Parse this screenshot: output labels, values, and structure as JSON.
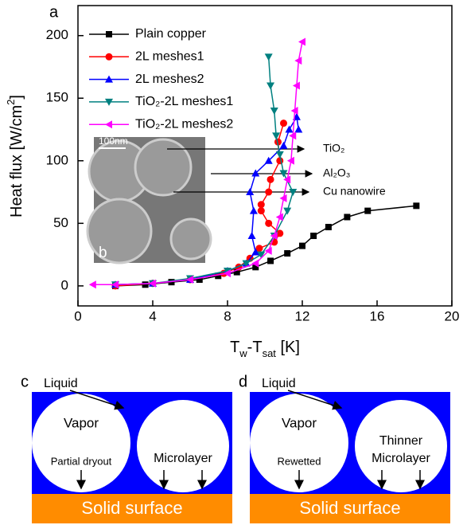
{
  "chart_data": {
    "type": "line",
    "panel_label": "a",
    "x_label": [
      "T",
      "w",
      "-T",
      "sat",
      " [K]"
    ],
    "y_label": [
      "Heat flux [W/cm",
      "2",
      "]"
    ],
    "xlim": [
      0,
      20
    ],
    "xticks": [
      0,
      4,
      8,
      12,
      16,
      20
    ],
    "ylim": [
      -16,
      224
    ],
    "yticks": [
      0,
      50,
      100,
      150,
      200
    ],
    "legend": "upper left",
    "series": [
      {
        "name": "Plain copper",
        "color": "#000000",
        "marker": "square",
        "x": [
          2,
          3.6,
          5,
          6.5,
          7.5,
          8.5,
          9.5,
          10.3,
          11.2,
          12,
          12.6,
          13.4,
          14.4,
          15.5,
          18.1
        ],
        "values": [
          0,
          1,
          3,
          5,
          8,
          11,
          15,
          20,
          26,
          32,
          40,
          47,
          55,
          60,
          64
        ]
      },
      {
        "name": "2L meshes1",
        "color": "#ff0000",
        "marker": "circle",
        "x": [
          2,
          4,
          6,
          7.8,
          8.6,
          9.2,
          9.7,
          10.5,
          10.8,
          10.2,
          9.8,
          9.8,
          10.2,
          10.3,
          10.8,
          10.7,
          11
        ],
        "values": [
          0,
          2,
          5,
          10,
          15,
          22,
          30,
          35,
          42,
          50,
          60,
          65,
          75,
          85,
          100,
          115,
          130
        ]
      },
      {
        "name": "2L meshes2",
        "color": "#0000ff",
        "marker": "up",
        "x": [
          2,
          4,
          6,
          8,
          9,
          9.5,
          9.3,
          9.4,
          9.2,
          9.5,
          10.2,
          11,
          11.3,
          11.7,
          11.8
        ],
        "values": [
          1,
          2,
          5,
          12,
          18,
          27,
          40,
          60,
          75,
          90,
          100,
          112,
          125,
          135,
          125
        ]
      },
      {
        "name": "TiO₂-2L meshes1",
        "color": "#008080",
        "marker": "down",
        "x": [
          2,
          4,
          6,
          8,
          9,
          9.8,
          10.5,
          11.2,
          11.5,
          11,
          10.8,
          10.6,
          10.5,
          10.3,
          10.2
        ],
        "values": [
          1,
          2,
          6,
          12,
          18,
          25,
          40,
          60,
          75,
          90,
          105,
          120,
          140,
          160,
          183
        ]
      },
      {
        "name": "TiO₂-2L meshes2",
        "color": "#ff00ff",
        "marker": "left",
        "x": [
          0.8,
          2,
          4,
          6,
          8,
          9.5,
          10.2,
          10.5,
          10.8,
          11,
          11.2,
          11.4,
          11.5,
          11.6,
          11.7,
          11.8,
          12
        ],
        "values": [
          1,
          1,
          2,
          5,
          10,
          18,
          28,
          40,
          55,
          70,
          85,
          100,
          120,
          140,
          160,
          180,
          195
        ]
      }
    ],
    "inset": {
      "scale_bar": "100nm",
      "label": "b",
      "annotations": [
        "TiO₂",
        "Al₂O₃",
        "Cu nanowire"
      ]
    }
  },
  "diagrams": [
    {
      "label": "c",
      "liquid": "Liquid",
      "vapor": "Vapor",
      "left_note": "Partial dryout",
      "right_note": [
        "Microlayer"
      ],
      "surface": "Solid surface"
    },
    {
      "label": "d",
      "liquid": "Liquid",
      "vapor": "Vapor",
      "left_note": "Rewetted",
      "right_note": [
        "Thinner",
        "Microlayer"
      ],
      "surface": "Solid surface"
    }
  ]
}
